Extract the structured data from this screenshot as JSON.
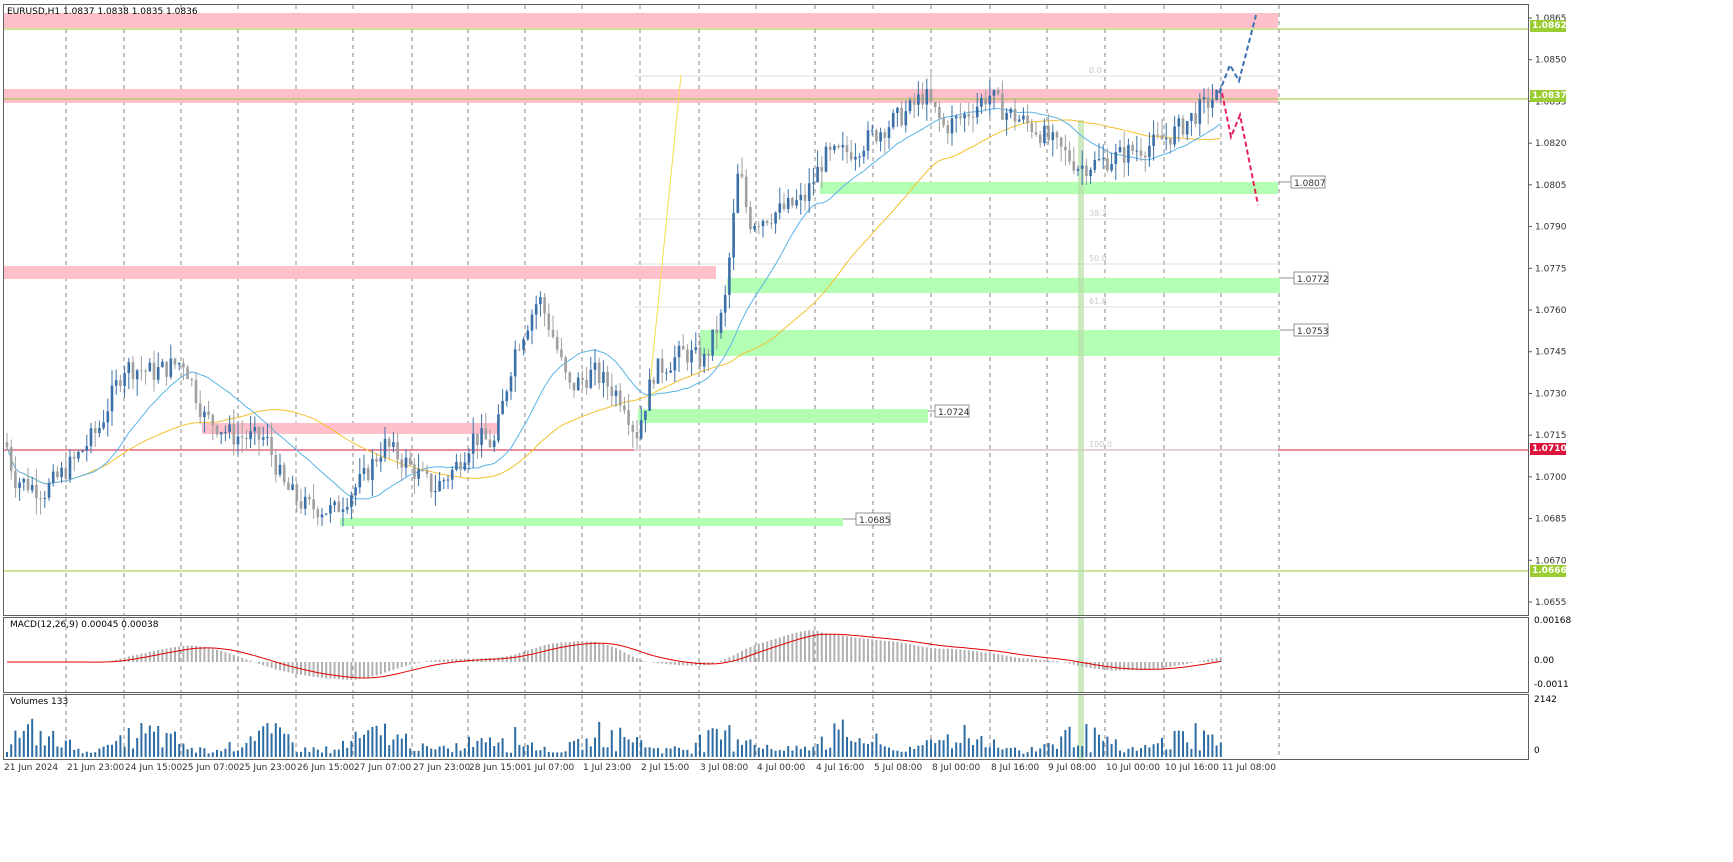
{
  "header": {
    "symbol": "EURUSD,H1",
    "quote": "1.0837 1.0838 1.0835 1.0836"
  },
  "macd": {
    "label": "MACD(12,26,9) 0.00045 0.00038",
    "scale": [
      "0.00168",
      "0.00",
      "-0.0011"
    ]
  },
  "volumes": {
    "label": "Volumes 133",
    "scale": [
      "2142",
      "0"
    ]
  },
  "colors": {
    "zone_red": "#ffc0cb",
    "zone_green": "#b3ffb3",
    "candle_bull": "#3a6fa8",
    "candle_bear": "#a0a0a0",
    "ma_fast": "#5ab4e8",
    "ma_slow": "#f2c12e",
    "macd_signal": "#e00000",
    "forecast_up": "#3a6fb0",
    "forecast_down": "#e8205a"
  },
  "chart_data": {
    "type": "candlestick",
    "title": "EURUSD,H1",
    "y_ticks": [
      "1.0865",
      "1.0850",
      "1.0835",
      "1.0820",
      "1.0805",
      "1.0790",
      "1.0775",
      "1.0760",
      "1.0745",
      "1.0730",
      "1.0715",
      "1.0700",
      "1.0685",
      "1.0670",
      "1.0655"
    ],
    "x_ticks": [
      "21 Jun 2024",
      "21 Jun 23:00",
      "24 Jun 15:00",
      "25 Jun 07:00",
      "25 Jun 23:00",
      "26 Jun 15:00",
      "27 Jun 07:00",
      "27 Jun 23:00",
      "28 Jun 15:00",
      "1 Jul 07:00",
      "1 Jul 23:00",
      "2 Jul 15:00",
      "3 Jul 08:00",
      "4 Jul 00:00",
      "4 Jul 16:00",
      "5 Jul 08:00",
      "8 Jul 00:00",
      "8 Jul 16:00",
      "9 Jul 08:00",
      "10 Jul 00:00",
      "10 Jul 16:00",
      "11 Jul 08:00"
    ],
    "level_tags": [
      {
        "value": "1.0862",
        "color": "#9acd32"
      },
      {
        "value": "1.0837",
        "color": "#9acd32"
      },
      {
        "value": "1.0710",
        "color": "#dc143c"
      },
      {
        "value": "1.0666",
        "color": "#9acd32"
      }
    ],
    "zone_labels": [
      "1.0807",
      "1.0772",
      "1.0753",
      "1.0724",
      "1.0685"
    ],
    "fibo_labels": [
      "0.0",
      "38.2",
      "50.0",
      "61.8",
      "100.0"
    ]
  }
}
